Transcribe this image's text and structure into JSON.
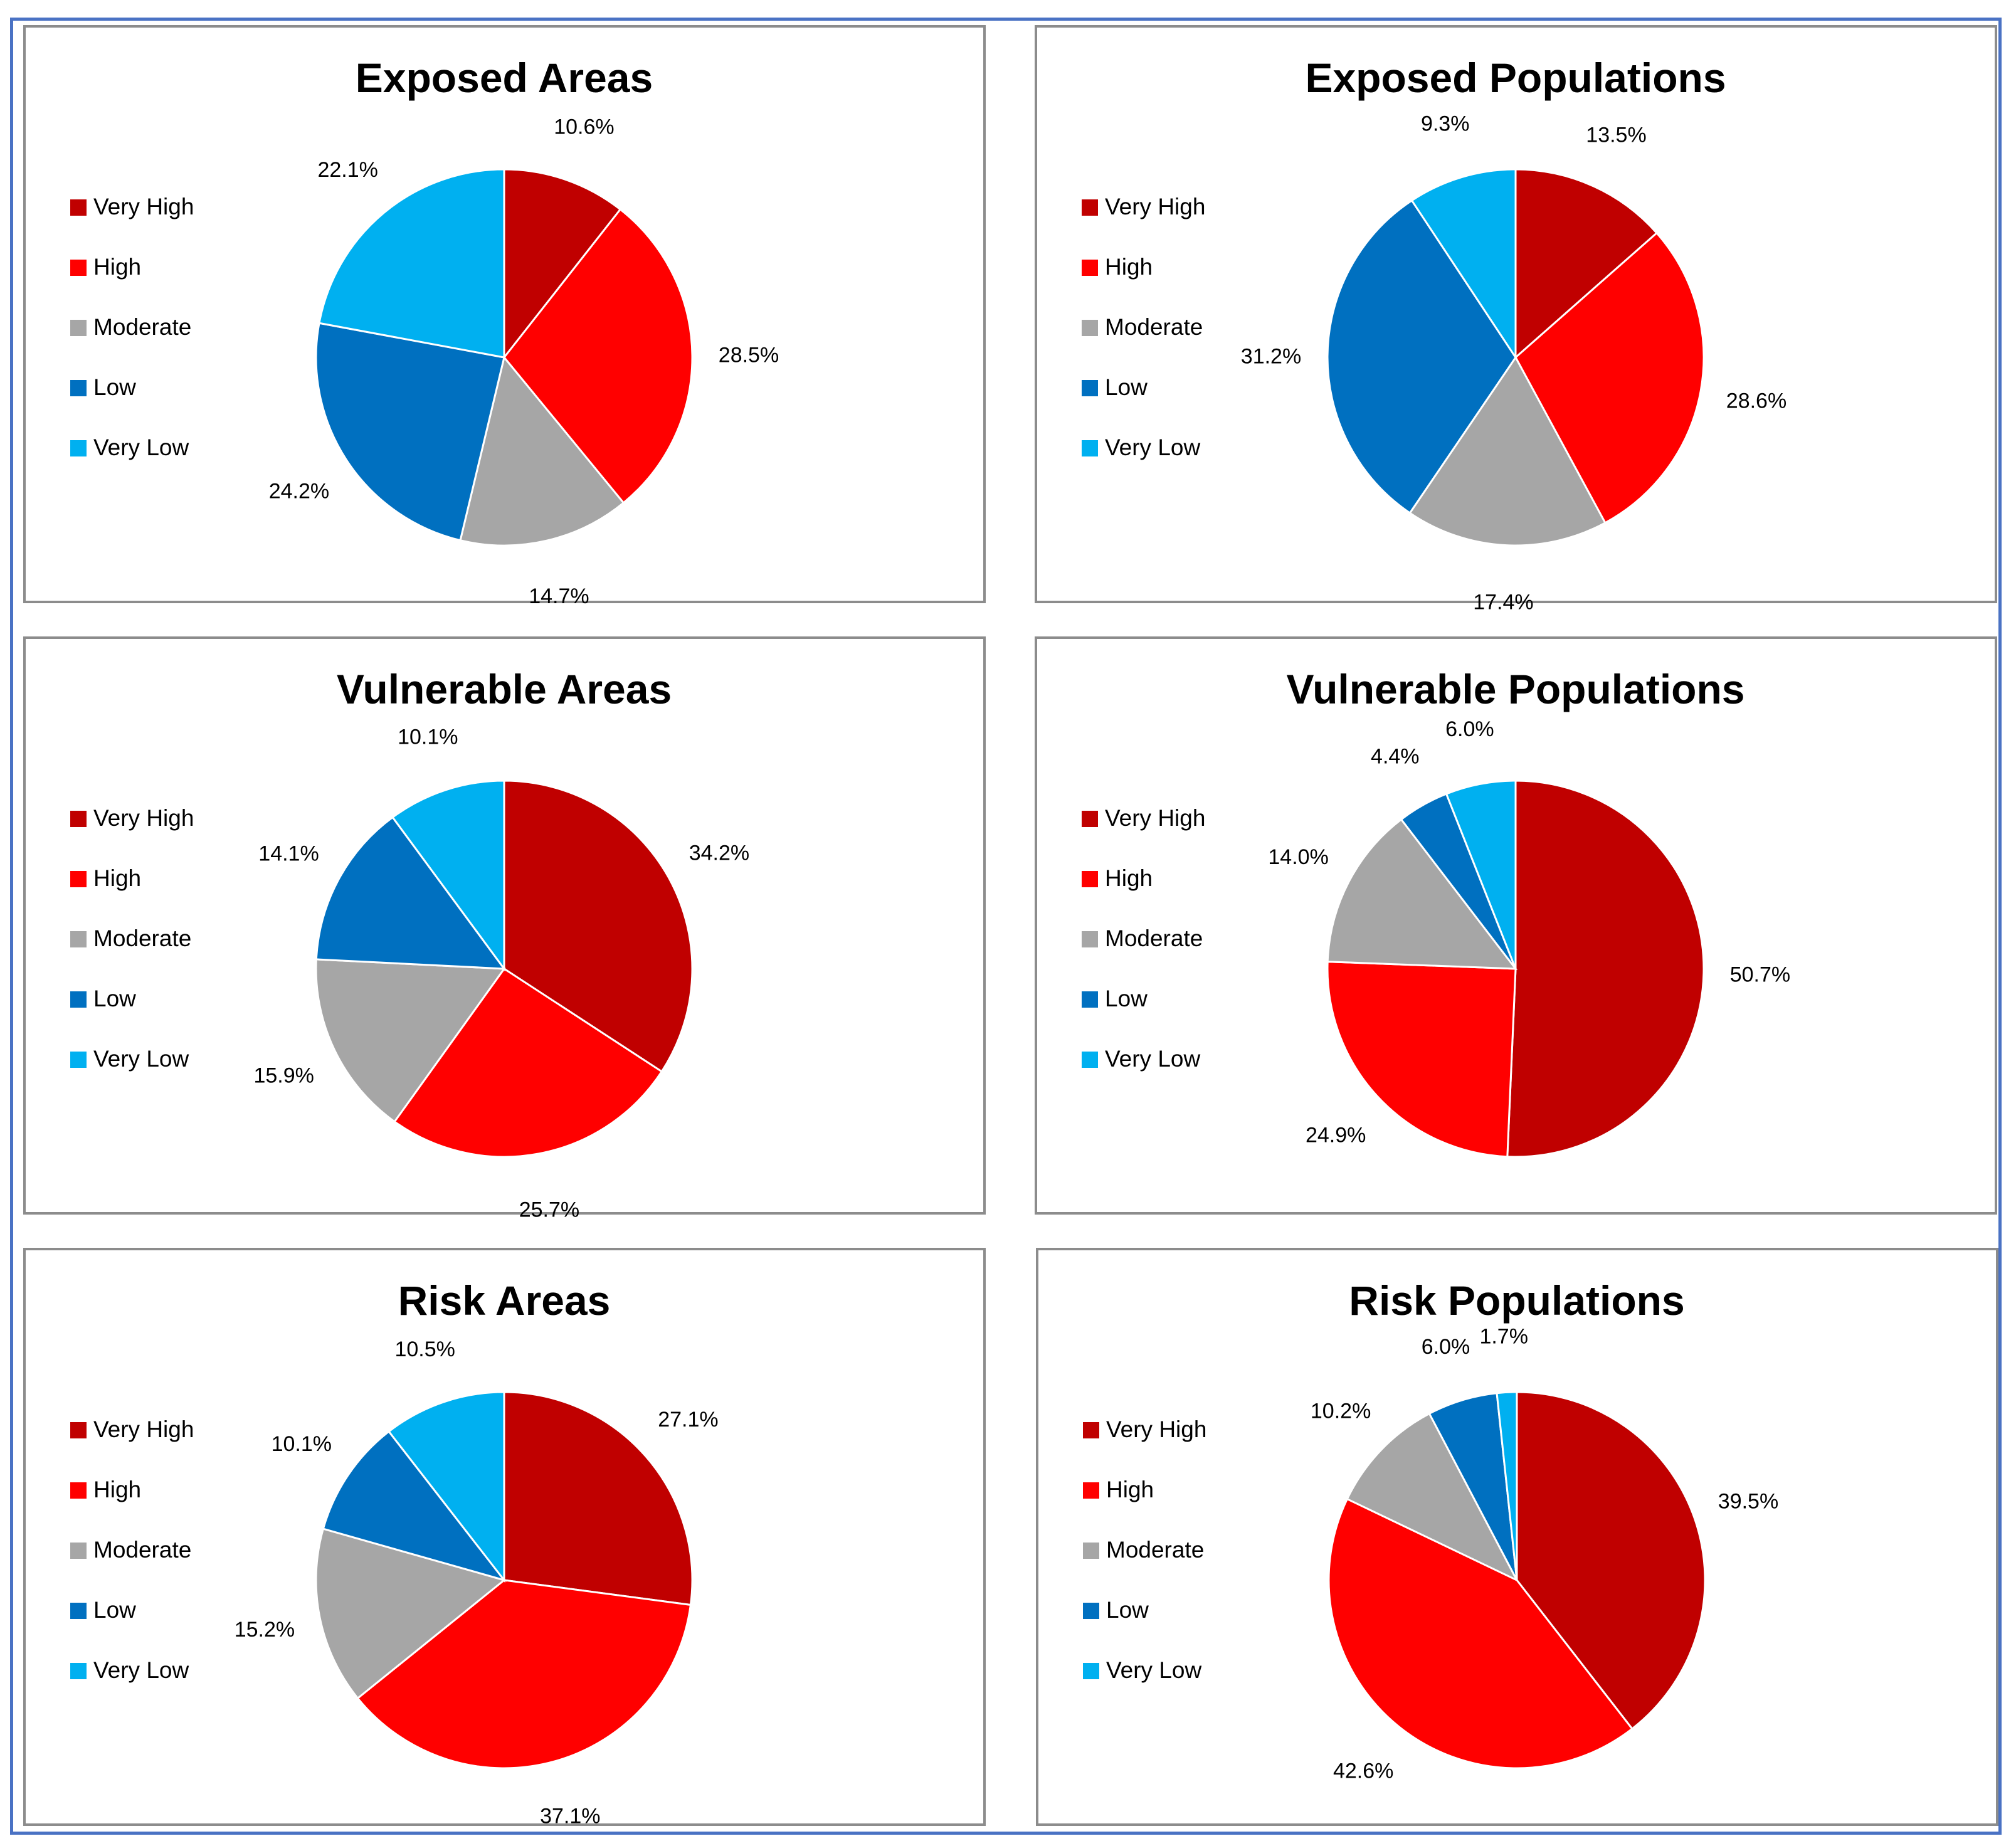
{
  "legend_labels": [
    "Very High",
    "High",
    "Moderate",
    "Low",
    "Very Low"
  ],
  "colors": {
    "very_high": "#c00000",
    "high": "#ff0000",
    "moderate": "#a6a6a6",
    "low": "#0070c0",
    "very_low": "#00b0f0",
    "frame": "#4a72c4",
    "panel_border": "#8c8c8c"
  },
  "chart_data": [
    {
      "type": "pie",
      "title": "Exposed Areas",
      "categories": [
        "Very High",
        "High",
        "Moderate",
        "Low",
        "Very Low"
      ],
      "values": [
        10.6,
        28.5,
        14.7,
        24.2,
        22.1
      ],
      "labels": [
        "10.6%",
        "28.5%",
        "14.7%",
        "24.2%",
        "22.1%"
      ],
      "legend": "left"
    },
    {
      "type": "pie",
      "title": "Exposed Populations",
      "categories": [
        "Very High",
        "High",
        "Moderate",
        "Low",
        "Very Low"
      ],
      "values": [
        13.5,
        28.6,
        17.4,
        31.2,
        9.3
      ],
      "labels": [
        "13.5%",
        "28.6%",
        "17.4%",
        "31.2%",
        "9.3%"
      ],
      "legend": "left"
    },
    {
      "type": "pie",
      "title": "Vulnerable Areas",
      "categories": [
        "Very High",
        "High",
        "Moderate",
        "Low",
        "Very Low"
      ],
      "values": [
        34.2,
        25.7,
        15.9,
        14.1,
        10.1
      ],
      "labels": [
        "34.2%",
        "25.7%",
        "15.9%",
        "14.1%",
        "10.1%"
      ],
      "legend": "left"
    },
    {
      "type": "pie",
      "title": "Vulnerable Populations",
      "categories": [
        "Very High",
        "High",
        "Moderate",
        "Low",
        "Very Low"
      ],
      "values": [
        50.7,
        24.9,
        14.0,
        4.4,
        6.0
      ],
      "labels": [
        "50.7%",
        "24.9%",
        "14.0%",
        "4.4%",
        "6.0%"
      ],
      "legend": "left"
    },
    {
      "type": "pie",
      "title": "Risk Areas",
      "categories": [
        "Very High",
        "High",
        "Moderate",
        "Low",
        "Very Low"
      ],
      "values": [
        27.1,
        37.1,
        15.2,
        10.1,
        10.5
      ],
      "labels": [
        "27.1%",
        "37.1%",
        "15.2%",
        "10.1%",
        "10.5%"
      ],
      "legend": "left"
    },
    {
      "type": "pie",
      "title": "Risk Populations",
      "categories": [
        "Very High",
        "High",
        "Moderate",
        "Low",
        "Very Low"
      ],
      "values": [
        39.5,
        42.6,
        10.2,
        6.0,
        1.7
      ],
      "labels": [
        "39.5%",
        "42.6%",
        "10.2%",
        "6.0%",
        "1.7%"
      ],
      "legend": "left"
    }
  ]
}
